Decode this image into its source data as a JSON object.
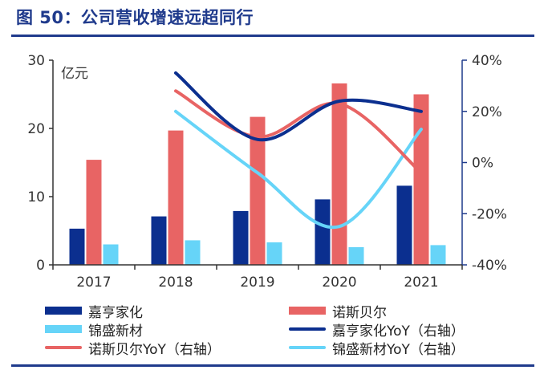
{
  "title": "图 50：公司营收增速远超同行",
  "chart_data": {
    "type": "bar",
    "categories": [
      "2017",
      "2018",
      "2019",
      "2020",
      "2021"
    ],
    "unit_label": "亿元",
    "ylim": [
      0,
      30
    ],
    "yticks": [
      "0",
      "10",
      "20",
      "30"
    ],
    "y2lim": [
      -40,
      40
    ],
    "y2ticks": [
      "-40%",
      "-20%",
      "0%",
      "20%",
      "40%"
    ],
    "series": [
      {
        "name": "嘉亨家化",
        "kind": "bar",
        "color": "#0b2f8f",
        "values": [
          5.3,
          7.1,
          7.9,
          9.6,
          11.6
        ]
      },
      {
        "name": "诺斯贝尔",
        "kind": "bar",
        "color": "#e86464",
        "values": [
          15.4,
          19.7,
          21.7,
          26.6,
          25.0
        ]
      },
      {
        "name": "锦盛新材",
        "kind": "bar",
        "color": "#66d4f8",
        "values": [
          3.0,
          3.6,
          3.3,
          2.6,
          2.9
        ]
      },
      {
        "name": "嘉亨家化YoY（右轴）",
        "kind": "line",
        "axis": "right",
        "color": "#0b2f8f",
        "values": [
          null,
          35,
          9,
          24,
          20
        ]
      },
      {
        "name": "诺斯贝尔YoY（右轴）",
        "kind": "line",
        "axis": "right",
        "color": "#e86464",
        "values": [
          null,
          28,
          10,
          23,
          -4
        ]
      },
      {
        "name": "锦盛新材YoY（右轴）",
        "kind": "line",
        "axis": "right",
        "color": "#66d4f8",
        "values": [
          null,
          20,
          -4,
          -25,
          13
        ]
      }
    ]
  }
}
